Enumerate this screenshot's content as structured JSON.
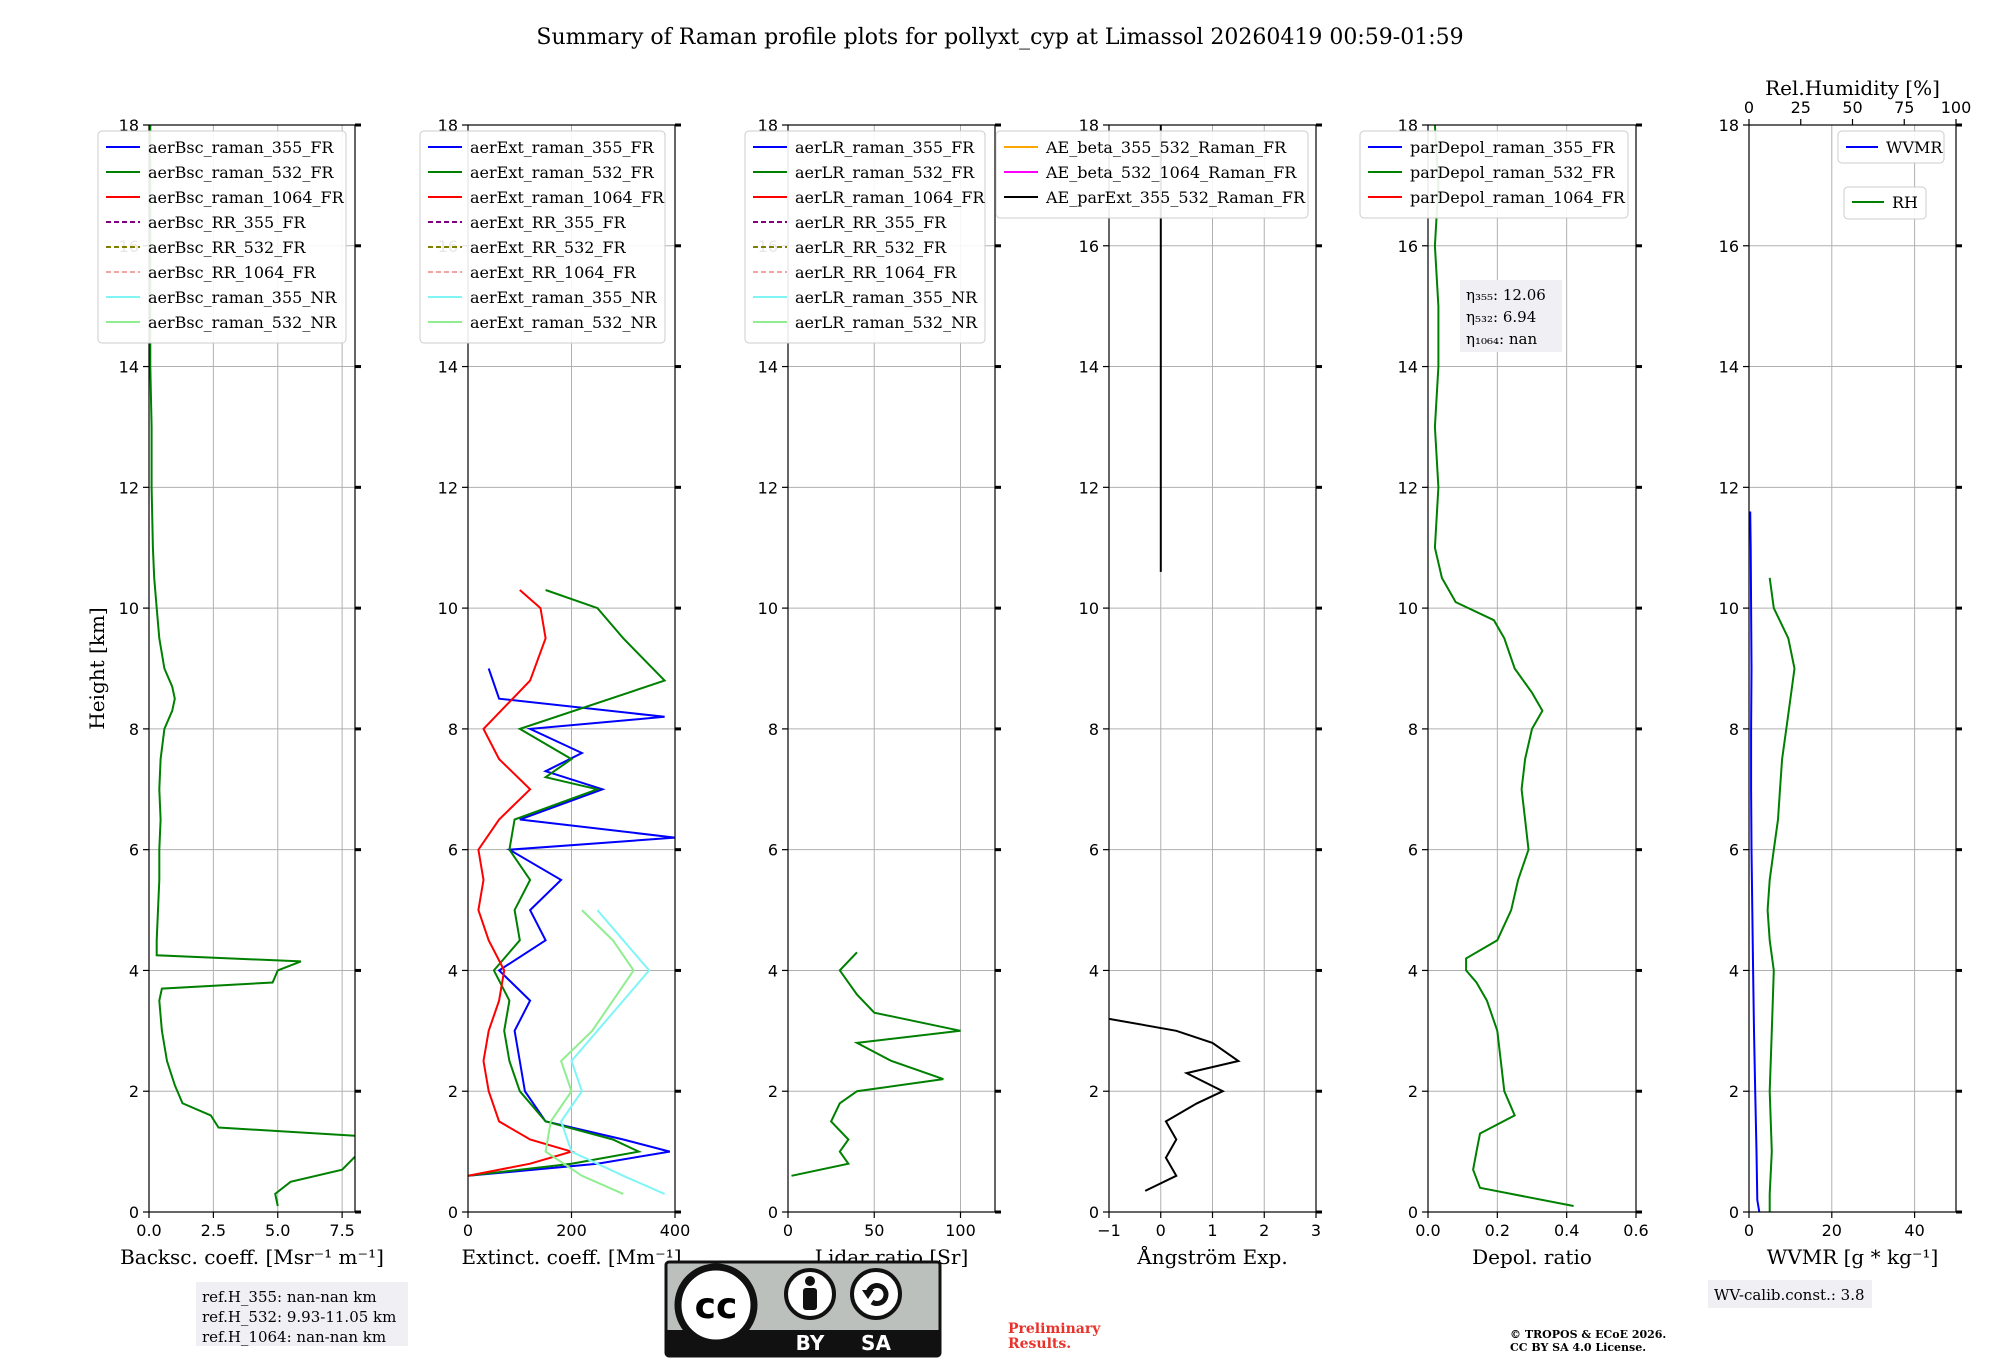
{
  "title": "Summary of Raman profile plots for pollyxt_cyp at Limassol 20260419 00:59-01:59",
  "colors": {
    "blue": "#0000ff",
    "green": "#008000",
    "red": "#ff0000",
    "purple": "#800080",
    "olive": "#808000",
    "salmon": "#f4a3a3",
    "cyan": "#7ff5f5",
    "lightgreen": "#90ee90",
    "orange": "#ffa500",
    "magenta": "#ff00ff",
    "black": "#000000",
    "preliminary": "#e8322b"
  },
  "chart_data": [
    {
      "type": "line",
      "xlabel": "Backsc. coeff. [Msr⁻¹ m⁻¹]",
      "ylabel": "Height [km]",
      "xlim": [
        0,
        8
      ],
      "ylim": [
        0,
        18
      ],
      "xticks": [
        "0.0",
        "2.5",
        "5.0",
        "7.5"
      ],
      "yticks": [
        "0",
        "2",
        "4",
        "6",
        "8",
        "10",
        "12",
        "14",
        "16",
        "18"
      ],
      "legend": [
        "aerBsc_raman_355_FR",
        "aerBsc_raman_532_FR",
        "aerBsc_raman_1064_FR",
        "aerBsc_RR_355_FR",
        "aerBsc_RR_532_FR",
        "aerBsc_RR_1064_FR",
        "aerBsc_raman_355_NR",
        "aerBsc_raman_532_NR"
      ],
      "series": [
        {
          "name": "aerBsc_raman_532_FR",
          "y": [
            0.1,
            0.3,
            0.5,
            0.7,
            1.0,
            1.25,
            1.4,
            1.6,
            1.8,
            2.1,
            2.5,
            3.0,
            3.5,
            3.7,
            3.8,
            4.0,
            4.15,
            4.25,
            4.5,
            5.0,
            5.5,
            6.0,
            6.5,
            7.0,
            7.5,
            8.0,
            8.3,
            8.5,
            8.7,
            9.0,
            9.5,
            10.0,
            10.5,
            11.0,
            12.0,
            13.0,
            14.0,
            16.0,
            18.0
          ],
          "x": [
            5.0,
            4.9,
            5.5,
            7.5,
            8.2,
            8.5,
            2.7,
            2.4,
            1.3,
            1.0,
            0.7,
            0.5,
            0.4,
            0.5,
            4.8,
            5.0,
            5.9,
            0.3,
            0.3,
            0.35,
            0.4,
            0.4,
            0.45,
            0.4,
            0.45,
            0.6,
            0.9,
            1.0,
            0.9,
            0.6,
            0.4,
            0.3,
            0.2,
            0.15,
            0.1,
            0.1,
            0.05,
            0.05,
            0.05
          ]
        }
      ]
    },
    {
      "type": "line",
      "xlabel": "Extinct. coeff. [Mm⁻¹]",
      "xlim": [
        0,
        400
      ],
      "ylim": [
        0,
        18
      ],
      "xticks": [
        "0",
        "200",
        "400"
      ],
      "yticks": [
        "0",
        "2",
        "4",
        "6",
        "8",
        "10",
        "12",
        "14",
        "16",
        "18"
      ],
      "legend": [
        "aerExt_raman_355_FR",
        "aerExt_raman_532_FR",
        "aerExt_raman_1064_FR",
        "aerExt_RR_355_FR",
        "aerExt_RR_532_FR",
        "aerExt_RR_1064_FR",
        "aerExt_raman_355_NR",
        "aerExt_raman_532_NR"
      ],
      "series": [
        {
          "name": "aerExt_raman_355_FR",
          "y": [
            0.6,
            0.8,
            1.0,
            1.2,
            1.5,
            2.0,
            2.5,
            3.0,
            3.5,
            4.0,
            4.5,
            5.0,
            5.5,
            6.0,
            6.2,
            6.5,
            7.0,
            7.3,
            7.6,
            8.0,
            8.2,
            8.5,
            9.0
          ],
          "x": [
            0,
            250,
            390,
            300,
            150,
            110,
            100,
            90,
            120,
            60,
            150,
            120,
            180,
            80,
            400,
            100,
            260,
            150,
            220,
            120,
            380,
            60,
            40
          ]
        },
        {
          "name": "aerExt_raman_532_FR",
          "y": [
            0.6,
            0.8,
            1.0,
            1.2,
            1.5,
            2.0,
            2.5,
            3.0,
            3.5,
            4.0,
            4.5,
            5.0,
            5.5,
            6.0,
            6.5,
            7.0,
            7.2,
            7.5,
            8.0,
            8.8,
            9.5,
            10.0,
            10.3
          ],
          "x": [
            0,
            200,
            330,
            280,
            150,
            100,
            80,
            70,
            80,
            50,
            100,
            90,
            120,
            80,
            90,
            250,
            150,
            200,
            100,
            380,
            300,
            250,
            150
          ]
        },
        {
          "name": "aerExt_raman_1064_FR",
          "y": [
            0.6,
            0.8,
            1.0,
            1.2,
            1.5,
            2.0,
            2.5,
            3.0,
            3.5,
            4.0,
            4.5,
            5.0,
            5.5,
            6.0,
            6.5,
            7.0,
            7.5,
            8.0,
            8.8,
            9.5,
            10.0,
            10.3
          ],
          "x": [
            0,
            120,
            200,
            120,
            60,
            40,
            30,
            40,
            60,
            70,
            40,
            20,
            30,
            20,
            60,
            120,
            60,
            30,
            120,
            150,
            140,
            100
          ]
        },
        {
          "name": "aerExt_raman_355_NR",
          "y": [
            0.3,
            0.6,
            1.0,
            1.5,
            2.0,
            2.5,
            3.0,
            3.5,
            4.0,
            4.5,
            5.0
          ],
          "x": [
            380,
            300,
            200,
            180,
            220,
            200,
            250,
            300,
            350,
            300,
            250
          ]
        },
        {
          "name": "aerExt_raman_532_NR",
          "y": [
            0.3,
            0.6,
            1.0,
            1.5,
            2.0,
            2.5,
            3.0,
            3.5,
            4.0,
            4.5,
            5.0
          ],
          "x": [
            300,
            220,
            150,
            160,
            200,
            180,
            240,
            280,
            320,
            280,
            220
          ]
        }
      ]
    },
    {
      "type": "line",
      "xlabel": "Lidar ratio [Sr]",
      "xlim": [
        0,
        120
      ],
      "ylim": [
        0,
        18
      ],
      "xticks": [
        "0",
        "50",
        "100"
      ],
      "yticks": [
        "0",
        "2",
        "4",
        "6",
        "8",
        "10",
        "12",
        "14",
        "16",
        "18"
      ],
      "legend": [
        "aerLR_raman_355_FR",
        "aerLR_raman_532_FR",
        "aerLR_raman_1064_FR",
        "aerLR_RR_355_FR",
        "aerLR_RR_532_FR",
        "aerLR_RR_1064_FR",
        "aerLR_raman_355_NR",
        "aerLR_raman_532_NR"
      ],
      "series": [
        {
          "name": "aerLR_raman_532_FR",
          "y": [
            0.6,
            0.8,
            1.0,
            1.2,
            1.5,
            1.8,
            2.0,
            2.2,
            2.5,
            2.8,
            3.0,
            3.3,
            3.6,
            4.0,
            4.3
          ],
          "x": [
            2,
            35,
            30,
            35,
            25,
            30,
            40,
            90,
            60,
            40,
            100,
            50,
            40,
            30,
            40
          ]
        }
      ]
    },
    {
      "type": "line",
      "xlabel": "Ångström Exp.",
      "xlim": [
        -1,
        3
      ],
      "ylim": [
        0,
        18
      ],
      "xticks": [
        "−1",
        "0",
        "1",
        "2",
        "3"
      ],
      "yticks": [
        "0",
        "2",
        "4",
        "6",
        "8",
        "10",
        "12",
        "14",
        "16",
        "18"
      ],
      "legend": [
        "AE_beta_355_532_Raman_FR",
        "AE_beta_532_1064_Raman_FR",
        "AE_parExt_355_532_Raman_FR"
      ],
      "series": [
        {
          "name": "AE_parExt_355_532_Raman_FR",
          "y": [
            0.35,
            0.6,
            0.9,
            1.2,
            1.5,
            1.8,
            2.0,
            2.3,
            2.5,
            2.8,
            3.0,
            3.2
          ],
          "x": [
            -0.3,
            0.3,
            0.1,
            0.3,
            0.1,
            0.7,
            1.2,
            0.5,
            1.5,
            1.0,
            0.3,
            -1.0
          ]
        },
        {
          "name": "AE_parExt_355_532_Raman_FR",
          "y": [
            10.6,
            10.7,
            18.0
          ],
          "x": [
            0.0,
            0.0,
            0.0
          ]
        }
      ]
    },
    {
      "type": "line",
      "xlabel": "Depol. ratio",
      "xlim": [
        0,
        0.6
      ],
      "ylim": [
        0,
        18
      ],
      "xticks": [
        "0.0",
        "0.2",
        "0.4",
        "0.6"
      ],
      "yticks": [
        "0",
        "2",
        "4",
        "6",
        "8",
        "10",
        "12",
        "14",
        "16",
        "18"
      ],
      "legend": [
        "parDepol_raman_355_FR",
        "parDepol_raman_532_FR",
        "parDepol_raman_1064_FR"
      ],
      "annotations": [
        "η₃₅₅: 12.06",
        "η₅₃₂: 6.94",
        "η₁₀₆₄: nan"
      ],
      "series": [
        {
          "name": "parDepol_raman_532_FR",
          "y": [
            0.1,
            0.4,
            0.7,
            1.0,
            1.3,
            1.6,
            2.0,
            2.5,
            3.0,
            3.5,
            3.8,
            4.0,
            4.2,
            4.5,
            5.0,
            5.5,
            6.0,
            6.5,
            7.0,
            7.5,
            8.0,
            8.3,
            8.6,
            9.0,
            9.5,
            9.8,
            10.1,
            10.5,
            11.0,
            12.0,
            13.0,
            14.0,
            15.0,
            16.0,
            17.0,
            18.0
          ],
          "x": [
            0.42,
            0.15,
            0.13,
            0.14,
            0.15,
            0.25,
            0.22,
            0.21,
            0.2,
            0.17,
            0.14,
            0.11,
            0.11,
            0.2,
            0.24,
            0.26,
            0.29,
            0.28,
            0.27,
            0.28,
            0.3,
            0.33,
            0.3,
            0.25,
            0.22,
            0.19,
            0.08,
            0.04,
            0.02,
            0.03,
            0.02,
            0.03,
            0.03,
            0.02,
            0.03,
            0.02
          ]
        }
      ]
    },
    {
      "type": "line",
      "xlabel": "WVMR [g * kg⁻¹]",
      "x2label": "Rel.Humidity [%]",
      "xlim": [
        0,
        50
      ],
      "x2lim": [
        0,
        100
      ],
      "ylim": [
        0,
        18
      ],
      "xticks": [
        "0",
        "20",
        "40"
      ],
      "x2ticks": [
        "0",
        "25",
        "50",
        "75",
        "100"
      ],
      "yticks": [
        "0",
        "2",
        "4",
        "6",
        "8",
        "10",
        "12",
        "14",
        "16",
        "18"
      ],
      "legend": [
        "WVMR",
        "RH"
      ],
      "series": [
        {
          "name": "WVMR",
          "y": [
            0.0,
            0.2,
            1.0,
            2.0,
            3.0,
            4.0,
            5.0,
            6.0,
            7.0,
            8.0,
            9.0,
            10.0,
            11.0,
            11.6
          ],
          "x": [
            2.5,
            2.0,
            1.8,
            1.5,
            1.2,
            1.0,
            0.8,
            0.6,
            0.5,
            0.5,
            0.6,
            0.5,
            0.4,
            0.3
          ]
        },
        {
          "name": "RH",
          "y": [
            0.0,
            0.3,
            1.0,
            2.0,
            3.0,
            4.0,
            4.5,
            5.0,
            5.5,
            6.0,
            6.5,
            7.0,
            7.5,
            8.0,
            8.5,
            9.0,
            9.5,
            10.0,
            10.5
          ],
          "x": [
            10,
            10,
            11,
            10,
            11,
            12,
            10,
            9,
            10,
            12,
            14,
            15,
            16,
            18,
            20,
            22,
            19,
            12,
            10
          ]
        }
      ]
    }
  ],
  "refbox": {
    "line1": "ref.H_355: nan-nan km",
    "line2": "ref.H_532: 9.93-11.05 km",
    "line3": "ref.H_1064: nan-nan km"
  },
  "wvcalib": "WV-calib.const.: 3.8",
  "license": {
    "cc": "cc",
    "by": "BY",
    "sa": "SA"
  },
  "preliminary": {
    "line1": "Preliminary",
    "line2": "Results."
  },
  "copyright": {
    "line1": "© TROPOS & ECoE 2026.",
    "line2": "CC BY SA 4.0 License."
  }
}
